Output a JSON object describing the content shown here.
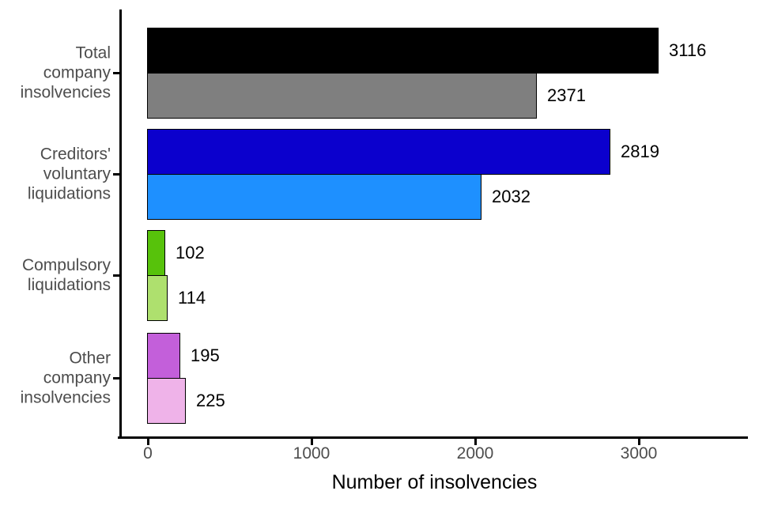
{
  "figure": {
    "background_color": "#ffffff",
    "axis_color": "#000000",
    "tick_label_color": "#4d4d4d",
    "value_label_color": "#000000"
  },
  "chart_data": {
    "type": "bar",
    "orientation": "horizontal",
    "title": "",
    "xlabel": "Number of insolvencies",
    "ylabel": "",
    "x_tick_labels": [
      "0",
      "1000",
      "2000",
      "3000"
    ],
    "x_tick_values": [
      0,
      1000,
      2000,
      3000
    ],
    "xlim": [
      0,
      3670
    ],
    "grid": false,
    "legend": "none",
    "bar_border_color": "#000000",
    "categories": [
      "Total company insolvencies",
      "Creditors' voluntary liquidations",
      "Compulsory liquidations",
      "Other company insolvencies"
    ],
    "groups": [
      {
        "category": "Total company insolvencies",
        "category_lines": [
          "Total",
          "company",
          "insolvencies"
        ],
        "bars": [
          {
            "value": 3116,
            "label": "3116",
            "color": "#000000"
          },
          {
            "value": 2371,
            "label": "2371",
            "color": "#7f7f7f"
          }
        ]
      },
      {
        "category": "Creditors' voluntary liquidations",
        "category_lines": [
          "Creditors'",
          "voluntary",
          "liquidations"
        ],
        "bars": [
          {
            "value": 2819,
            "label": "2819",
            "color": "#0b00cd"
          },
          {
            "value": 2032,
            "label": "2032",
            "color": "#1e90ff"
          }
        ]
      },
      {
        "category": "Compulsory liquidations",
        "category_lines": [
          "Compulsory",
          "liquidations"
        ],
        "bars": [
          {
            "value": 102,
            "label": "102",
            "color": "#57c20b"
          },
          {
            "value": 114,
            "label": "114",
            "color": "#aee06e"
          }
        ]
      },
      {
        "category": "Other company insolvencies",
        "category_lines": [
          "Other",
          "company",
          "insolvencies"
        ],
        "bars": [
          {
            "value": 195,
            "label": "195",
            "color": "#c35fda"
          },
          {
            "value": 225,
            "label": "225",
            "color": "#efb3e9"
          }
        ]
      }
    ]
  }
}
